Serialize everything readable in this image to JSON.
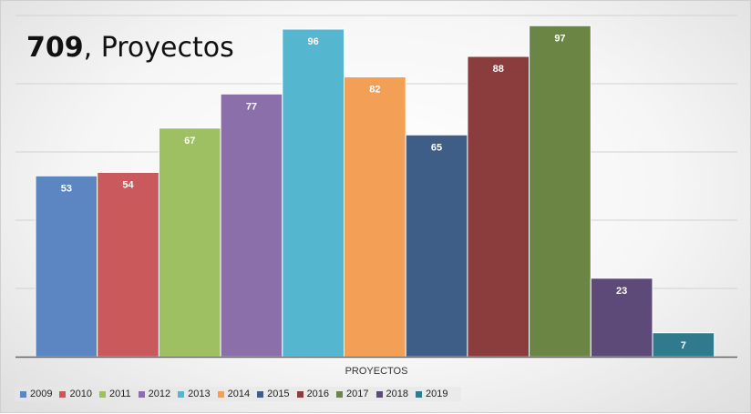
{
  "title": {
    "total": "709",
    "rest": ", Proyectos"
  },
  "chart_data": {
    "type": "bar",
    "title": "709, Proyectos",
    "xlabel": "PROYECTOS",
    "ylabel": "",
    "ylim": [
      0,
      100
    ],
    "grid": true,
    "legend_position": "bottom-left",
    "categories": [
      "PROYECTOS"
    ],
    "series": [
      {
        "name": "2009",
        "values": [
          53
        ],
        "color": "#5b86c2"
      },
      {
        "name": "2010",
        "values": [
          54
        ],
        "color": "#c9595a"
      },
      {
        "name": "2011",
        "values": [
          67
        ],
        "color": "#9fbf63"
      },
      {
        "name": "2012",
        "values": [
          77
        ],
        "color": "#8b6fab"
      },
      {
        "name": "2013",
        "values": [
          96
        ],
        "color": "#54b6cf"
      },
      {
        "name": "2014",
        "values": [
          82
        ],
        "color": "#f39f56"
      },
      {
        "name": "2015",
        "values": [
          65
        ],
        "color": "#3e5d87"
      },
      {
        "name": "2016",
        "values": [
          88
        ],
        "color": "#8a3d3c"
      },
      {
        "name": "2017",
        "values": [
          97
        ],
        "color": "#6b8544"
      },
      {
        "name": "2018",
        "values": [
          23
        ],
        "color": "#5d4a78"
      },
      {
        "name": "2019",
        "values": [
          7
        ],
        "color": "#2f7a8c"
      }
    ]
  }
}
